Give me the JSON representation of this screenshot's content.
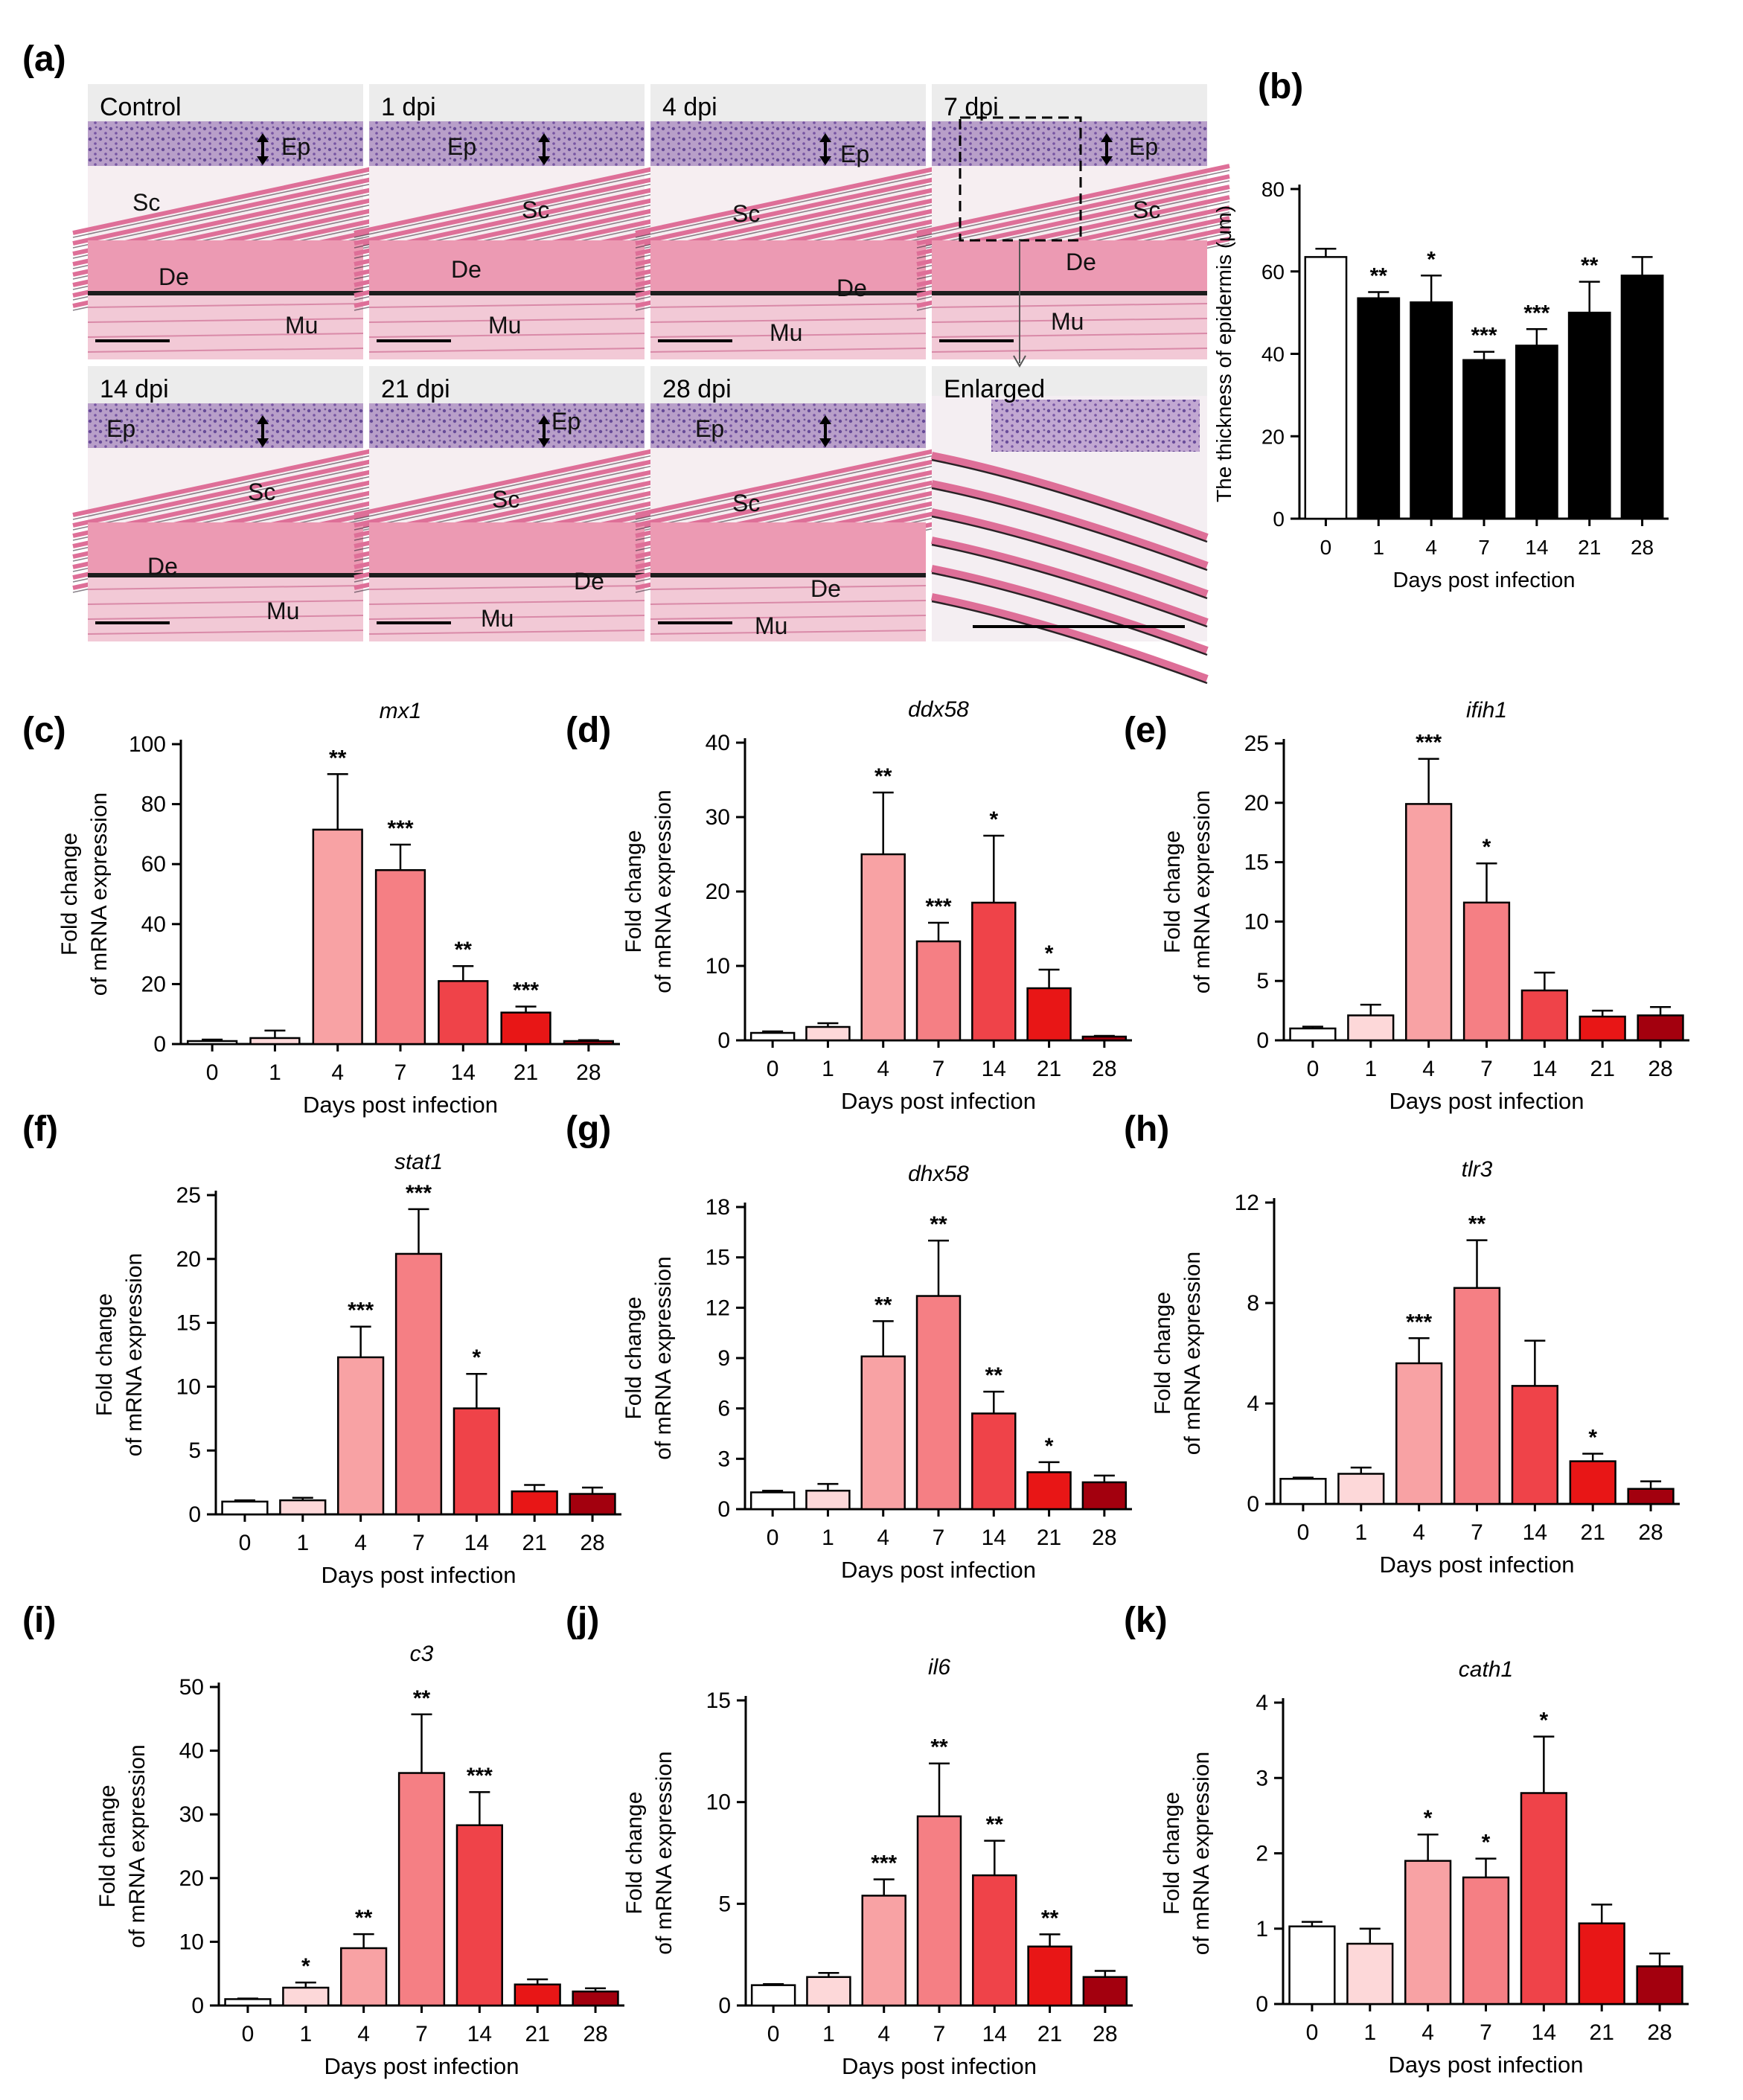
{
  "panels": {
    "a": {
      "label": "(a)",
      "micrographs": [
        {
          "title": "Control",
          "labels": [
            "Ep",
            "Sc",
            "De",
            "Mu"
          ]
        },
        {
          "title": "1 dpi",
          "labels": [
            "Ep",
            "Sc",
            "De",
            "Mu"
          ]
        },
        {
          "title": "4 dpi",
          "labels": [
            "Ep",
            "Sc",
            "De",
            "Mu"
          ]
        },
        {
          "title": "7 dpi",
          "labels": [
            "Ep",
            "Sc",
            "De",
            "Mu"
          ]
        },
        {
          "title": "14 dpi",
          "labels": [
            "Ep",
            "Sc",
            "De",
            "Mu"
          ]
        },
        {
          "title": "21 dpi",
          "labels": [
            "Ep",
            "Sc",
            "De",
            "Mu"
          ]
        },
        {
          "title": "28 dpi",
          "labels": [
            "Ep",
            "Sc",
            "De",
            "Mu"
          ]
        },
        {
          "title": "Enlarged",
          "labels": []
        }
      ]
    }
  },
  "colors": {
    "d0": "#ffffff",
    "d1": "#fdd8d9",
    "d4": "#f8a2a4",
    "d7": "#f57f84",
    "d14": "#ef4349",
    "d21": "#e81616",
    "d28": "#a3000e"
  },
  "chart_data": [
    {
      "id": "b",
      "label": "(b)",
      "type": "bar",
      "title": "",
      "ylabel": "The thickness of epidermis (μm)",
      "xlabel": "Days post infection",
      "categories": [
        "0",
        "1",
        "4",
        "7",
        "14",
        "21",
        "28"
      ],
      "ylim": [
        0,
        80
      ],
      "yticks": [
        0,
        20,
        40,
        60,
        80
      ],
      "values": [
        63.5,
        53.5,
        52.5,
        38.5,
        42,
        50,
        59
      ],
      "errors": [
        2,
        1.5,
        6.5,
        2,
        4,
        7.5,
        4.5
      ],
      "sig": [
        "",
        "**",
        "*",
        "***",
        "***",
        "**",
        ""
      ],
      "style": "bw"
    },
    {
      "id": "c",
      "label": "(c)",
      "type": "bar",
      "title": "mx1",
      "ylabel": [
        "Fold change",
        "of mRNA expression"
      ],
      "xlabel": "Days post infection",
      "categories": [
        "0",
        "1",
        "4",
        "7",
        "14",
        "21",
        "28"
      ],
      "ylim": [
        0,
        100
      ],
      "yticks": [
        0,
        20,
        40,
        60,
        80,
        100
      ],
      "values": [
        1,
        2,
        71.5,
        58,
        21,
        10.5,
        1
      ],
      "errors": [
        0.5,
        2.5,
        18.5,
        8.5,
        5,
        2,
        0.3
      ],
      "sig": [
        "",
        "",
        "**",
        "***",
        "**",
        "***",
        ""
      ]
    },
    {
      "id": "d",
      "label": "(d)",
      "type": "bar",
      "title": "ddx58",
      "ylabel": [
        "Fold change",
        "of mRNA expression"
      ],
      "xlabel": "Days post infection",
      "categories": [
        "0",
        "1",
        "4",
        "7",
        "14",
        "21",
        "28"
      ],
      "ylim": [
        0,
        40
      ],
      "yticks": [
        0,
        10,
        20,
        30,
        40
      ],
      "values": [
        1,
        1.8,
        25,
        13.3,
        18.5,
        7,
        0.5
      ],
      "errors": [
        0.2,
        0.5,
        8.3,
        2.5,
        9,
        2.5,
        0.1
      ],
      "sig": [
        "",
        "",
        "**",
        "***",
        "*",
        "*",
        ""
      ]
    },
    {
      "id": "e",
      "label": "(e)",
      "type": "bar",
      "title": "ifih1",
      "ylabel": [
        "Fold change",
        "of mRNA expression"
      ],
      "xlabel": "Days post infection",
      "categories": [
        "0",
        "1",
        "4",
        "7",
        "14",
        "21",
        "28"
      ],
      "ylim": [
        0,
        25
      ],
      "yticks": [
        0,
        5,
        10,
        15,
        20,
        25
      ],
      "values": [
        1,
        2.1,
        19.9,
        11.6,
        4.2,
        2.0,
        2.1
      ],
      "errors": [
        0.15,
        0.9,
        3.8,
        3.3,
        1.5,
        0.5,
        0.7
      ],
      "sig": [
        "",
        "",
        "***",
        "*",
        "",
        "",
        ""
      ]
    },
    {
      "id": "f",
      "label": "(f)",
      "type": "bar",
      "title": "stat1",
      "ylabel": [
        "Fold change",
        "of mRNA expression"
      ],
      "xlabel": "Days post infection",
      "categories": [
        "0",
        "1",
        "4",
        "7",
        "14",
        "21",
        "28"
      ],
      "ylim": [
        0,
        25
      ],
      "yticks": [
        0,
        5,
        10,
        15,
        20,
        25
      ],
      "values": [
        1,
        1.1,
        12.3,
        20.4,
        8.3,
        1.8,
        1.6
      ],
      "errors": [
        0.1,
        0.2,
        2.4,
        3.5,
        2.7,
        0.5,
        0.5
      ],
      "sig": [
        "",
        "",
        "***",
        "***",
        "*",
        "",
        ""
      ]
    },
    {
      "id": "g",
      "label": "(g)",
      "type": "bar",
      "title": "dhx58",
      "ylabel": [
        "Fold change",
        "of mRNA expression"
      ],
      "xlabel": "Days post infection",
      "categories": [
        "0",
        "1",
        "4",
        "7",
        "14",
        "21",
        "28"
      ],
      "ylim": [
        0,
        18
      ],
      "yticks": [
        0,
        3,
        6,
        9,
        12,
        15,
        18
      ],
      "values": [
        1,
        1.1,
        9.1,
        12.7,
        5.7,
        2.2,
        1.6
      ],
      "errors": [
        0.1,
        0.4,
        2.1,
        3.3,
        1.3,
        0.6,
        0.4
      ],
      "sig": [
        "",
        "",
        "**",
        "**",
        "**",
        "*",
        ""
      ]
    },
    {
      "id": "h",
      "label": "(h)",
      "type": "bar",
      "title": "tlr3",
      "ylabel": [
        "Fold change",
        "of mRNA expression"
      ],
      "xlabel": "Days post infection",
      "categories": [
        "0",
        "1",
        "4",
        "7",
        "14",
        "21",
        "28"
      ],
      "ylim": [
        0,
        12
      ],
      "yticks": [
        0,
        4,
        8,
        12
      ],
      "values": [
        1,
        1.2,
        5.6,
        8.6,
        4.7,
        1.7,
        0.6
      ],
      "errors": [
        0.05,
        0.25,
        1.0,
        1.9,
        1.8,
        0.3,
        0.3
      ],
      "sig": [
        "",
        "",
        "***",
        "**",
        "",
        "*",
        ""
      ]
    },
    {
      "id": "i",
      "label": "(i)",
      "type": "bar",
      "title": "c3",
      "ylabel": [
        "Fold change",
        "of mRNA expression"
      ],
      "xlabel": "Days post infection",
      "categories": [
        "0",
        "1",
        "4",
        "7",
        "14",
        "21",
        "28"
      ],
      "ylim": [
        0,
        50
      ],
      "yticks": [
        0,
        10,
        20,
        30,
        40,
        50
      ],
      "values": [
        1,
        2.8,
        9,
        36.5,
        28.3,
        3.3,
        2.2
      ],
      "errors": [
        0.1,
        0.8,
        2.2,
        9.2,
        5.2,
        0.8,
        0.5
      ],
      "sig": [
        "",
        "*",
        "**",
        "**",
        "***",
        "",
        ""
      ]
    },
    {
      "id": "j",
      "label": "(j)",
      "type": "bar",
      "title": "il6",
      "ylabel": [
        "Fold change",
        "of mRNA expression"
      ],
      "xlabel": "Days post infection",
      "categories": [
        "0",
        "1",
        "4",
        "7",
        "14",
        "21",
        "28"
      ],
      "ylim": [
        0,
        15
      ],
      "yticks": [
        0,
        5,
        10,
        15
      ],
      "values": [
        1,
        1.4,
        5.4,
        9.3,
        6.4,
        2.9,
        1.4
      ],
      "errors": [
        0.05,
        0.2,
        0.8,
        2.6,
        1.7,
        0.6,
        0.3
      ],
      "sig": [
        "",
        "",
        "***",
        "**",
        "**",
        "**",
        ""
      ]
    },
    {
      "id": "k",
      "label": "(k)",
      "type": "bar",
      "title": "cath1",
      "ylabel": [
        "Fold change",
        "of mRNA expression"
      ],
      "xlabel": "Days post infection",
      "categories": [
        "0",
        "1",
        "4",
        "7",
        "14",
        "21",
        "28"
      ],
      "ylim": [
        0,
        4
      ],
      "yticks": [
        0,
        1,
        2,
        3,
        4
      ],
      "values": [
        1.03,
        0.8,
        1.9,
        1.68,
        2.8,
        1.07,
        0.5
      ],
      "errors": [
        0.06,
        0.2,
        0.35,
        0.25,
        0.75,
        0.25,
        0.17
      ],
      "sig": [
        "",
        "",
        "*",
        "*",
        "*",
        "",
        ""
      ]
    }
  ]
}
